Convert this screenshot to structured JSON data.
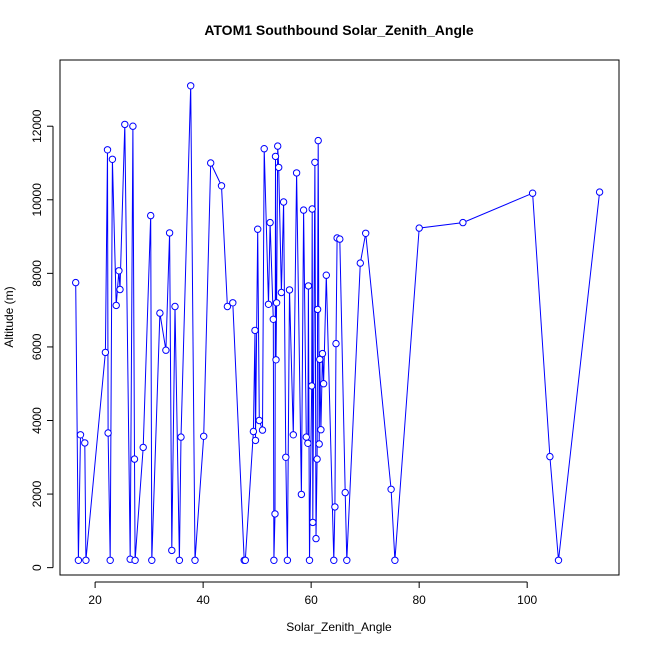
{
  "chart_data": {
    "type": "line",
    "title": "ATOM1 Southbound Solar_Zenith_Angle",
    "xlabel": "Solar_Zenith_Angle",
    "ylabel": "Altitude (m)",
    "xlim": [
      13.5,
      117
    ],
    "ylim": [
      -200,
      13800
    ],
    "x_ticks": [
      20,
      40,
      60,
      80,
      100
    ],
    "y_ticks": [
      0,
      2000,
      4000,
      6000,
      8000,
      10000,
      12000
    ],
    "grid": false,
    "colors": {
      "series": "#0000ff",
      "axes": "#000000"
    },
    "marker": "open-circle",
    "series": [
      {
        "points": [
          [
            16.4,
            7750
          ],
          [
            16.9,
            200
          ],
          [
            17.3,
            3610
          ],
          [
            18.1,
            3390
          ],
          [
            18.3,
            200
          ],
          [
            21.9,
            5850
          ],
          [
            22.3,
            11360
          ],
          [
            22.4,
            3660
          ],
          [
            22.8,
            200
          ],
          [
            23.2,
            11100
          ],
          [
            23.9,
            7130
          ],
          [
            24.4,
            8070
          ],
          [
            24.6,
            7560
          ],
          [
            25.5,
            12050
          ],
          [
            26.5,
            230
          ],
          [
            27.0,
            12000
          ],
          [
            27.3,
            2950
          ],
          [
            27.4,
            200
          ],
          [
            28.9,
            3270
          ],
          [
            30.3,
            9570
          ],
          [
            30.5,
            200
          ],
          [
            32.0,
            6920
          ],
          [
            33.1,
            5910
          ],
          [
            33.8,
            9100
          ],
          [
            34.2,
            470
          ],
          [
            34.8,
            7100
          ],
          [
            35.6,
            200
          ],
          [
            35.9,
            3550
          ],
          [
            37.7,
            13100
          ],
          [
            38.5,
            200
          ],
          [
            40.1,
            3570
          ],
          [
            41.4,
            11000
          ],
          [
            43.4,
            10380
          ],
          [
            44.5,
            7100
          ],
          [
            45.5,
            7200
          ],
          [
            47.6,
            200
          ],
          [
            47.8,
            200
          ],
          [
            49.3,
            3700
          ],
          [
            49.6,
            6450
          ],
          [
            49.7,
            3460
          ],
          [
            50.1,
            9200
          ],
          [
            50.4,
            4000
          ],
          [
            51.0,
            3740
          ],
          [
            51.3,
            11390
          ],
          [
            52.1,
            7160
          ],
          [
            52.4,
            9380
          ],
          [
            53.0,
            6750
          ],
          [
            53.1,
            200
          ],
          [
            53.3,
            1460
          ],
          [
            53.4,
            11180
          ],
          [
            53.5,
            5650
          ],
          [
            53.6,
            7200
          ],
          [
            53.8,
            11460
          ],
          [
            54.0,
            10880
          ],
          [
            54.5,
            7480
          ],
          [
            54.9,
            9940
          ],
          [
            55.3,
            3000
          ],
          [
            55.6,
            200
          ],
          [
            56.0,
            7550
          ],
          [
            56.7,
            3610
          ],
          [
            57.3,
            10730
          ],
          [
            58.2,
            1990
          ],
          [
            58.6,
            9720
          ],
          [
            59.1,
            3550
          ],
          [
            59.4,
            3380
          ],
          [
            59.5,
            7660
          ],
          [
            59.7,
            200
          ],
          [
            60.1,
            4940
          ],
          [
            60.2,
            9750
          ],
          [
            60.3,
            1230
          ],
          [
            60.7,
            11020
          ],
          [
            60.9,
            790
          ],
          [
            61.1,
            2950
          ],
          [
            61.2,
            7020
          ],
          [
            61.3,
            11610
          ],
          [
            61.5,
            3360
          ],
          [
            61.6,
            5660
          ],
          [
            61.8,
            3750
          ],
          [
            62.1,
            5820
          ],
          [
            62.3,
            5000
          ],
          [
            62.8,
            7950
          ],
          [
            64.2,
            200
          ],
          [
            64.4,
            1650
          ],
          [
            64.6,
            6090
          ],
          [
            64.8,
            8960
          ],
          [
            65.3,
            8930
          ],
          [
            66.3,
            2040
          ],
          [
            66.6,
            200
          ],
          [
            69.1,
            8280
          ],
          [
            70.1,
            9090
          ],
          [
            74.8,
            2130
          ],
          [
            75.5,
            200
          ],
          [
            80.0,
            9230
          ],
          [
            88.1,
            9380
          ],
          [
            101.0,
            10180
          ],
          [
            104.2,
            3020
          ],
          [
            105.8,
            200
          ],
          [
            113.4,
            10210
          ]
        ]
      }
    ]
  }
}
